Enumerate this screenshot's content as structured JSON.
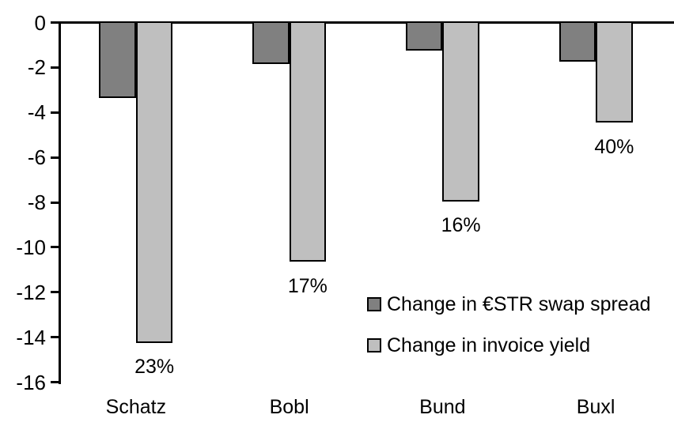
{
  "chart_data": {
    "type": "bar",
    "categories": [
      "Schatz",
      "Bobl",
      "Bund",
      "Buxl"
    ],
    "series": [
      {
        "name": "Change in €STR swap spread",
        "color": "#808080",
        "values": [
          -3.3,
          -1.8,
          -1.2,
          -1.7
        ]
      },
      {
        "name": "Change in invoice yield",
        "color": "#BFBFBF",
        "values": [
          -14.2,
          -10.6,
          -7.9,
          -4.4
        ]
      }
    ],
    "bar_labels": [
      "23%",
      "17%",
      "16%",
      "40%"
    ],
    "title": "",
    "xlabel": "",
    "ylabel": "",
    "y_ticks": [
      0,
      -2,
      -4,
      -6,
      -8,
      -10,
      -12,
      -14,
      -16
    ],
    "ylim": [
      -16,
      0
    ],
    "grid": false,
    "legend_position": "inside-lower-right",
    "bar_border_color": "#000000",
    "axis_color": "#000000"
  }
}
